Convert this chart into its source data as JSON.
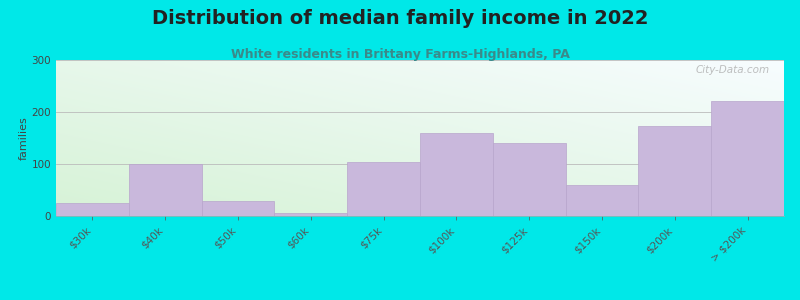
{
  "title": "Distribution of median family income in 2022",
  "subtitle": "White residents in Brittany Farms-Highlands, PA",
  "ylabel": "families",
  "categories": [
    "$30k",
    "$40k",
    "$50k",
    "$60k",
    "$75k",
    "$100k",
    "$125k",
    "$150k",
    "$200k",
    "> $200k"
  ],
  "values": [
    25,
    100,
    28,
    5,
    103,
    160,
    140,
    60,
    173,
    222
  ],
  "bar_color": "#c9b8dc",
  "bar_edgecolor": "#b8a5cc",
  "background_color": "#00e8e8",
  "plot_bg_top_color": "#f5faff",
  "plot_bg_bottom_left_color": "#d6f0d6",
  "ylim": [
    0,
    300
  ],
  "yticks": [
    0,
    100,
    200,
    300
  ],
  "title_fontsize": 14,
  "subtitle_fontsize": 9,
  "ylabel_fontsize": 8,
  "tick_fontsize": 7.5,
  "watermark": "City-Data.com"
}
